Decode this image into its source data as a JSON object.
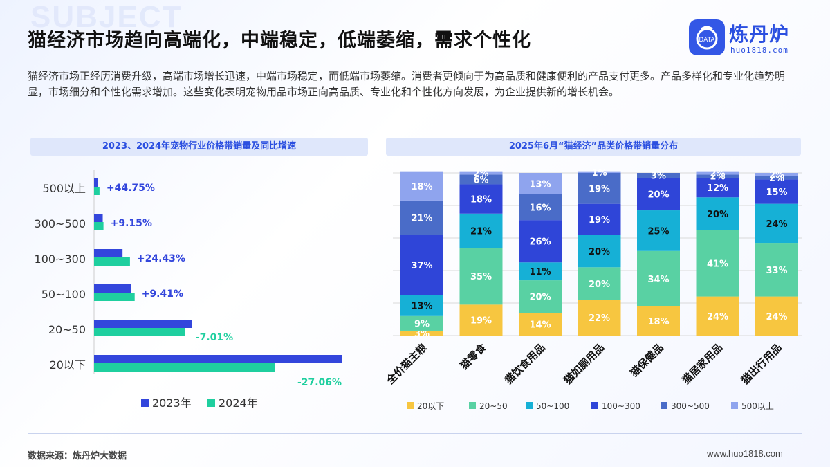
{
  "watermark": "SUBJECT",
  "title": "猫经济市场趋向高端化，中端稳定，低端萎缩，需求个性化",
  "logo": {
    "name": "炼丹炉",
    "url": "huo1818.com",
    "badge": "DATA"
  },
  "intro": "猫经济市场正经历消费升级，高端市场增长迅速，中端市场稳定，而低端市场萎缩。消费者更倾向于为高品质和健康便利的产品支付更多。产品多样化和专业化趋势明显，市场细分和个性化需求增加。这些变化表明宠物用品市场正向高品质、专业化和个性化方向发展，为企业提供新的增长机会。",
  "footer": {
    "source": "数据来源：炼丹炉大数据",
    "site": "www.huo1818.com"
  },
  "colors": {
    "accent": "#2b4fe0",
    "s2023": "#3346dc",
    "s2024": "#1fcf9f"
  },
  "chart_data": [
    {
      "type": "bar",
      "orientation": "horizontal",
      "title": "2023、2024年宠物行业价格带销量及同比增速",
      "categories": [
        "500以上",
        "300~500",
        "100~300",
        "50~100",
        "20~50",
        "20以下"
      ],
      "series": [
        {
          "name": "2023年",
          "color": "#3346dc",
          "values": [
            1.5,
            3.5,
            11.5,
            15.0,
            39.5,
            100.0
          ]
        },
        {
          "name": "2024年",
          "color": "#1fcf9f",
          "values": [
            2.2,
            3.8,
            14.5,
            16.4,
            36.7,
            73.0
          ]
        }
      ],
      "growth_labels": [
        "+44.75%",
        "+9.15%",
        "+24.43%",
        "+9.41%",
        "-7.01%",
        "-27.06%"
      ],
      "legend": "bottom"
    },
    {
      "type": "bar",
      "stacked": true,
      "title": "2025年6月“猫经济”品类价格带销量分布",
      "categories": [
        "全价猫主粮",
        "猫零食",
        "猫饮食用品",
        "猫如厕用品",
        "猫保健品",
        "猫居家用品",
        "猫出行用品"
      ],
      "series": [
        {
          "name": "20以下",
          "color": "#f7c640",
          "values": [
            3,
            19,
            14,
            22,
            18,
            24,
            24
          ]
        },
        {
          "name": "20~50",
          "color": "#59d1a3",
          "values": [
            9,
            35,
            20,
            20,
            34,
            41,
            33
          ]
        },
        {
          "name": "50~100",
          "color": "#16b0d6",
          "values": [
            13,
            21,
            11,
            20,
            25,
            20,
            24
          ]
        },
        {
          "name": "100~300",
          "color": "#2f45d8",
          "values": [
            37,
            18,
            26,
            19,
            20,
            12,
            15
          ]
        },
        {
          "name": "300~500",
          "color": "#4a6cc8",
          "values": [
            21,
            6,
            16,
            19,
            3,
            2,
            2
          ]
        },
        {
          "name": "500以上",
          "color": "#8fa4ee",
          "values": [
            18,
            2,
            13,
            1,
            0,
            2,
            2
          ]
        }
      ],
      "ylim": [
        0,
        100
      ],
      "legend": "bottom"
    }
  ]
}
